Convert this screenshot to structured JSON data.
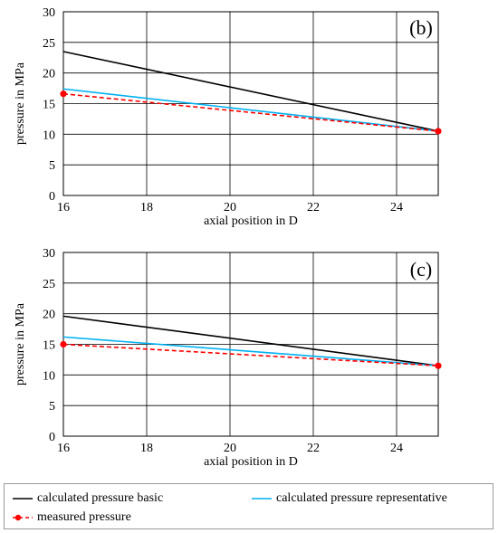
{
  "chart_data": [
    {
      "type": "line",
      "panel_label": "(b)",
      "xlabel": "axial position in D",
      "ylabel": "pressure in MPa",
      "xlim": [
        16,
        25
      ],
      "ylim": [
        0,
        30
      ],
      "xticks": [
        16,
        18,
        20,
        22,
        24
      ],
      "yticks": [
        0,
        5,
        10,
        15,
        20,
        25,
        30
      ],
      "grid": true,
      "series": [
        {
          "name": "calculated pressure basic",
          "color": "#000000",
          "style": "solid",
          "markers": false,
          "x": [
            16,
            25
          ],
          "y": [
            23.5,
            10.5
          ]
        },
        {
          "name": "calculated pressure representative",
          "color": "#00b0f0",
          "style": "solid",
          "markers": false,
          "x": [
            16,
            25
          ],
          "y": [
            17.4,
            10.5
          ]
        },
        {
          "name": "measured pressure",
          "color": "#ff0000",
          "style": "dashed",
          "markers": true,
          "x": [
            16,
            25
          ],
          "y": [
            16.6,
            10.5
          ]
        }
      ]
    },
    {
      "type": "line",
      "panel_label": "(c)",
      "xlabel": "axial position in D",
      "ylabel": "pressure in MPa",
      "xlim": [
        16,
        25
      ],
      "ylim": [
        0,
        30
      ],
      "xticks": [
        16,
        18,
        20,
        22,
        24
      ],
      "yticks": [
        0,
        5,
        10,
        15,
        20,
        25,
        30
      ],
      "grid": true,
      "series": [
        {
          "name": "calculated pressure basic",
          "color": "#000000",
          "style": "solid",
          "markers": false,
          "x": [
            16,
            25
          ],
          "y": [
            19.6,
            11.5
          ]
        },
        {
          "name": "calculated pressure representative",
          "color": "#00b0f0",
          "style": "solid",
          "markers": false,
          "x": [
            16,
            25
          ],
          "y": [
            16.2,
            11.5
          ]
        },
        {
          "name": "measured pressure",
          "color": "#ff0000",
          "style": "dashed",
          "markers": true,
          "x": [
            16,
            25
          ],
          "y": [
            15.0,
            11.5
          ]
        }
      ]
    }
  ],
  "legend": {
    "placement": "bottom",
    "items": [
      {
        "label": "calculated pressure basic",
        "color": "#000000",
        "style": "solid",
        "marker": false
      },
      {
        "label": "calculated pressure representative",
        "color": "#00b0f0",
        "style": "solid",
        "marker": false
      },
      {
        "label": "measured pressure",
        "color": "#ff0000",
        "style": "dashed",
        "marker": true
      }
    ]
  }
}
